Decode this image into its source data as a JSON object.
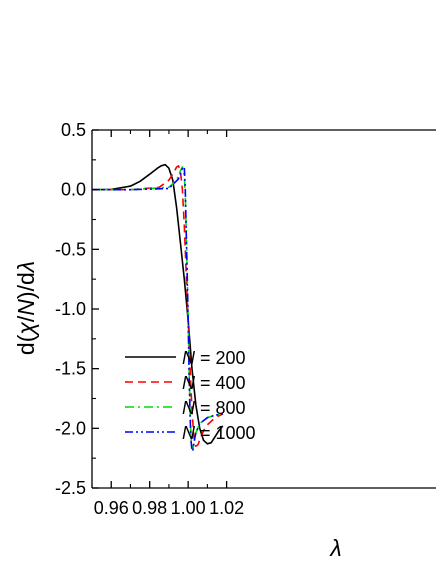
{
  "chart_data": {
    "type": "line",
    "xlabel": "λ",
    "ylabel": "d(χ/N)/dλ",
    "xlim": [
      0.95,
      1.01
    ],
    "ylim": [
      -2.5,
      0.5
    ],
    "xticks": [
      0.96,
      0.98,
      1.0,
      1.02
    ],
    "xtick_labels": [
      "0.96",
      "0.98",
      "1.00",
      "1.02"
    ],
    "yticks": [
      0.5,
      0.0,
      -0.5,
      -1.0,
      -1.5,
      -2.0,
      -2.5
    ],
    "ytick_labels": [
      "0.5",
      "0.0",
      "-0.5",
      "-1.0",
      "-1.5",
      "-2.0",
      "-2.5"
    ],
    "grid": false,
    "legend_position": "lower-left",
    "series": [
      {
        "name": "N = 200",
        "legend_var": "N",
        "legend_value": " = 200",
        "color": "#000000",
        "dash": "solid",
        "x": [
          0.95,
          0.96,
          0.97,
          0.975,
          0.98,
          0.984,
          0.986,
          0.988,
          0.99,
          0.992,
          0.994,
          0.996,
          0.998,
          1.0,
          1.002,
          1.004,
          1.006,
          1.008,
          1.01,
          1.012,
          1.014,
          1.016,
          1.018
        ],
        "y": [
          0.0,
          0.002,
          0.03,
          0.07,
          0.13,
          0.18,
          0.2,
          0.21,
          0.18,
          0.08,
          -0.15,
          -0.45,
          -0.75,
          -1.1,
          -1.5,
          -1.8,
          -2.0,
          -2.1,
          -2.13,
          -2.12,
          -2.07,
          -2.02,
          -1.98
        ]
      },
      {
        "name": "N = 400",
        "legend_var": "N",
        "legend_value": " = 400",
        "color": "#ff0000",
        "dash": "dashed",
        "x": [
          0.95,
          0.97,
          0.985,
          0.99,
          0.992,
          0.994,
          0.995,
          0.996,
          0.997,
          0.998,
          0.999,
          1.0,
          1.001,
          1.002,
          1.003,
          1.004,
          1.005,
          1.006,
          1.008,
          1.01,
          1.014,
          1.018
        ],
        "y": [
          0.0,
          0.0,
          0.02,
          0.08,
          0.13,
          0.19,
          0.2,
          0.15,
          0.0,
          -0.3,
          -0.7,
          -1.1,
          -1.5,
          -1.85,
          -2.07,
          -2.15,
          -2.14,
          -2.1,
          -2.02,
          -1.97,
          -1.91,
          -1.88
        ]
      },
      {
        "name": "N = 800",
        "legend_var": "N",
        "legend_value": " = 800",
        "color": "#00dd00",
        "dash": "dashdot",
        "x": [
          0.95,
          0.97,
          0.99,
          0.994,
          0.996,
          0.997,
          0.998,
          0.9985,
          0.999,
          0.9995,
          1.0,
          1.0005,
          1.001,
          1.0015,
          1.002,
          1.0025,
          1.003,
          1.004,
          1.006,
          1.01,
          1.014,
          1.018
        ],
        "y": [
          0.0,
          0.0,
          0.02,
          0.08,
          0.16,
          0.19,
          0.12,
          -0.05,
          -0.35,
          -0.7,
          -1.1,
          -1.5,
          -1.85,
          -2.07,
          -2.17,
          -2.17,
          -2.12,
          -2.04,
          -1.96,
          -1.91,
          -1.89,
          -1.88
        ]
      },
      {
        "name": "N = 1000",
        "legend_var": "N",
        "legend_value": " = 1000",
        "color": "#0000ff",
        "dash": "dashdotdot",
        "x": [
          0.95,
          0.97,
          0.99,
          0.995,
          0.997,
          0.998,
          0.9985,
          0.999,
          0.9995,
          1.0,
          1.0005,
          1.001,
          1.0015,
          1.002,
          1.0025,
          1.003,
          1.004,
          1.006,
          1.01,
          1.014,
          1.018
        ],
        "y": [
          0.0,
          0.0,
          0.01,
          0.09,
          0.18,
          0.19,
          0.0,
          -0.35,
          -0.72,
          -1.1,
          -1.55,
          -1.9,
          -2.1,
          -2.19,
          -2.18,
          -2.12,
          -2.04,
          -1.96,
          -1.91,
          -1.89,
          -1.88
        ]
      }
    ]
  }
}
